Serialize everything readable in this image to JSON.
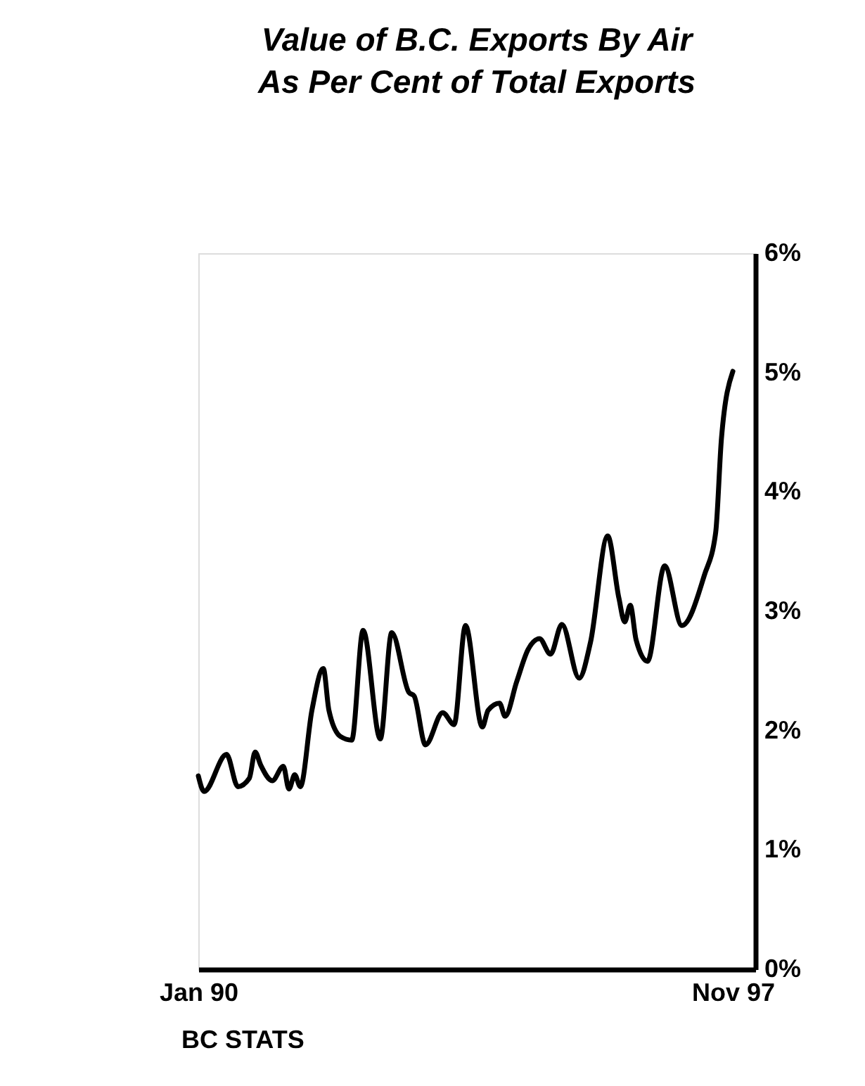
{
  "chart_data": {
    "type": "line",
    "title": "Value of B.C. Exports By Air\nAs Per Cent of Total Exports",
    "x": [
      "1990-01",
      "1990-02",
      "1990-06",
      "1990-08",
      "1990-10",
      "1990-11",
      "1990-12",
      "1991-02",
      "1991-04",
      "1991-05",
      "1991-06",
      "1991-07",
      "1991-09",
      "1991-11",
      "1991-12",
      "1992-02",
      "1992-04",
      "1992-06",
      "1992-09",
      "1992-11",
      "1993-02",
      "1993-03",
      "1993-05",
      "1993-08",
      "1993-10",
      "1993-12",
      "1994-03",
      "1994-04",
      "1994-06",
      "1994-07",
      "1994-09",
      "1994-11",
      "1995-01",
      "1995-03",
      "1995-05",
      "1995-08",
      "1995-10",
      "1996-01",
      "1996-03",
      "1996-04",
      "1996-05",
      "1996-06",
      "1996-08",
      "1996-11",
      "1997-02",
      "1997-06",
      "1997-08",
      "1997-09",
      "1997-11"
    ],
    "series": [
      {
        "color": "#000000",
        "values": [
          1.62,
          1.49,
          1.8,
          1.53,
          1.6,
          1.82,
          1.71,
          1.58,
          1.7,
          1.51,
          1.63,
          1.53,
          2.17,
          2.52,
          2.17,
          1.95,
          1.92,
          2.84,
          1.93,
          2.82,
          2.32,
          2.29,
          1.88,
          2.15,
          2.05,
          2.88,
          2.03,
          2.17,
          2.23,
          2.12,
          2.41,
          2.68,
          2.77,
          2.64,
          2.89,
          2.44,
          2.74,
          3.63,
          3.11,
          2.91,
          3.05,
          2.76,
          2.58,
          3.38,
          2.88,
          3.3,
          3.66,
          4.45,
          5.01
        ]
      }
    ],
    "xlim": [
      "1990-01",
      "1998-03"
    ],
    "xticks": [
      {
        "value": "1990-01",
        "label": "Jan 90"
      },
      {
        "value": "1997-11",
        "label": "Nov 97"
      }
    ],
    "ylim": [
      0,
      6
    ],
    "yticks": [
      {
        "value": 0,
        "label": "0%"
      },
      {
        "value": 1,
        "label": "1%"
      },
      {
        "value": 2,
        "label": "2%"
      },
      {
        "value": 3,
        "label": "3%"
      },
      {
        "value": 4,
        "label": "4%"
      },
      {
        "value": 5,
        "label": "5%"
      },
      {
        "value": 6,
        "label": "6%"
      }
    ],
    "annotations": [
      "BC STATS"
    ]
  }
}
